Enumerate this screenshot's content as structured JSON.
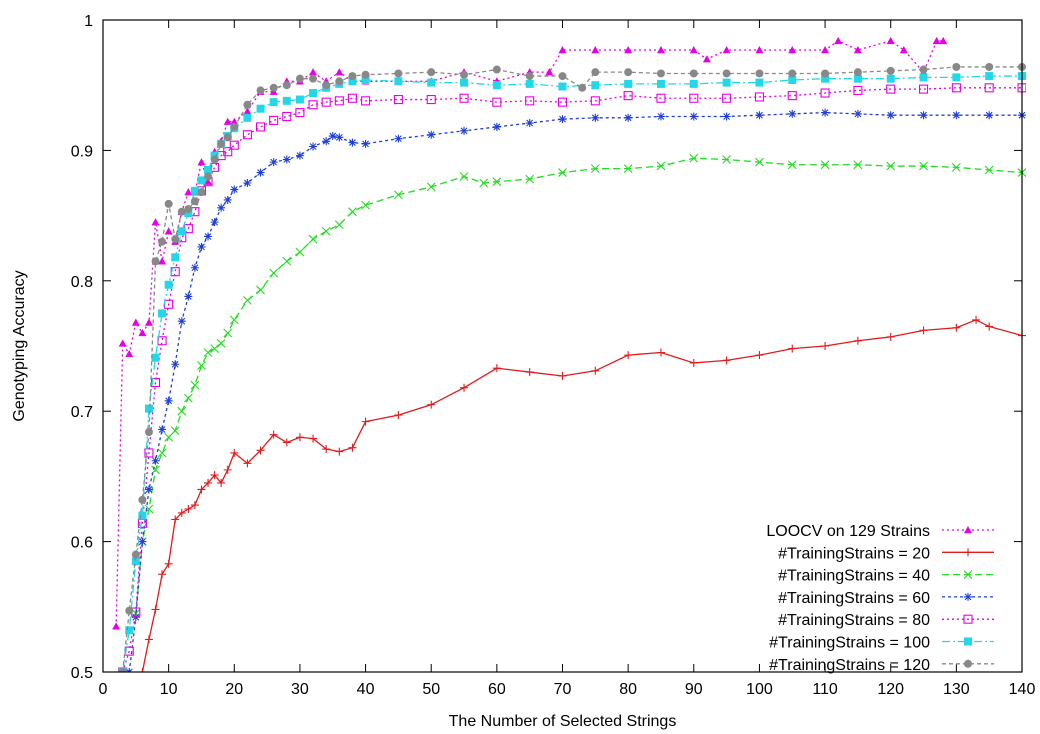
{
  "chart_data": {
    "type": "line",
    "xlabel": "The Number of Selected Strings",
    "ylabel": "Genotyping Accuracy",
    "xlim": [
      0,
      140
    ],
    "ylim": [
      0.5,
      1.0
    ],
    "x_ticks": [
      0,
      10,
      20,
      30,
      40,
      50,
      60,
      70,
      80,
      90,
      100,
      110,
      120,
      130,
      140
    ],
    "y_ticks": [
      0.5,
      0.6,
      0.7,
      0.8,
      0.9,
      1.0
    ],
    "y_tick_labels": [
      "0.5",
      "0.6",
      "0.7",
      "0.8",
      "0.9",
      "1"
    ],
    "grid": false,
    "legend_position": "bottom-right",
    "series": [
      {
        "name": "LOOCV on 129 Strains",
        "color": "#e600e6",
        "dash": "2,3",
        "marker": "triangle",
        "x": [
          2,
          3,
          4,
          5,
          6,
          7,
          8,
          9,
          10,
          11,
          12,
          13,
          14,
          15,
          16,
          17,
          18,
          19,
          20,
          22,
          24,
          26,
          28,
          30,
          32,
          34,
          36,
          38,
          40,
          45,
          50,
          55,
          60,
          65,
          68,
          70,
          75,
          80,
          85,
          90,
          92,
          95,
          100,
          105,
          110,
          112,
          115,
          120,
          122,
          125,
          127,
          128
        ],
        "y": [
          0.535,
          0.752,
          0.744,
          0.768,
          0.76,
          0.768,
          0.845,
          0.815,
          0.838,
          0.83,
          0.853,
          0.868,
          0.868,
          0.891,
          0.876,
          0.899,
          0.907,
          0.922,
          0.922,
          0.93,
          0.945,
          0.945,
          0.953,
          0.953,
          0.96,
          0.953,
          0.96,
          0.953,
          0.953,
          0.953,
          0.953,
          0.96,
          0.953,
          0.96,
          0.96,
          0.977,
          0.977,
          0.977,
          0.977,
          0.977,
          0.97,
          0.977,
          0.977,
          0.977,
          0.977,
          0.984,
          0.977,
          0.984,
          0.977,
          0.96,
          0.984,
          0.984
        ]
      },
      {
        "name": "#TrainingStrains = 20",
        "color": "#e31a1c",
        "dash": "",
        "marker": "plus",
        "x": [
          6,
          7,
          8,
          9,
          10,
          11,
          12,
          13,
          14,
          15,
          16,
          17,
          18,
          19,
          20,
          22,
          24,
          26,
          28,
          30,
          32,
          34,
          36,
          38,
          40,
          45,
          50,
          55,
          60,
          65,
          70,
          75,
          80,
          85,
          90,
          95,
          100,
          105,
          110,
          115,
          120,
          125,
          130,
          133,
          135,
          140
        ],
        "y": [
          0.5,
          0.525,
          0.548,
          0.575,
          0.583,
          0.617,
          0.622,
          0.625,
          0.628,
          0.64,
          0.645,
          0.651,
          0.645,
          0.655,
          0.668,
          0.66,
          0.67,
          0.682,
          0.676,
          0.68,
          0.679,
          0.671,
          0.669,
          0.672,
          0.692,
          0.697,
          0.705,
          0.718,
          0.733,
          0.73,
          0.727,
          0.731,
          0.743,
          0.745,
          0.737,
          0.739,
          0.743,
          0.748,
          0.75,
          0.754,
          0.757,
          0.762,
          0.764,
          0.77,
          0.765,
          0.758
        ]
      },
      {
        "name": "#TrainingStrains = 40",
        "color": "#22dd22",
        "dash": "7,4",
        "marker": "x",
        "x": [
          5,
          6,
          7,
          8,
          9,
          10,
          11,
          12,
          13,
          14,
          15,
          16,
          17,
          18,
          19,
          20,
          22,
          24,
          26,
          28,
          30,
          32,
          34,
          36,
          38,
          40,
          45,
          50,
          55,
          58,
          60,
          65,
          70,
          75,
          80,
          85,
          90,
          95,
          100,
          105,
          110,
          115,
          120,
          125,
          130,
          135,
          140
        ],
        "y": [
          0.545,
          0.6,
          0.625,
          0.655,
          0.668,
          0.68,
          0.685,
          0.7,
          0.71,
          0.72,
          0.735,
          0.745,
          0.748,
          0.752,
          0.76,
          0.77,
          0.785,
          0.793,
          0.806,
          0.815,
          0.822,
          0.832,
          0.838,
          0.843,
          0.853,
          0.858,
          0.866,
          0.872,
          0.88,
          0.875,
          0.876,
          0.878,
          0.883,
          0.886,
          0.886,
          0.888,
          0.894,
          0.893,
          0.891,
          0.889,
          0.889,
          0.889,
          0.888,
          0.888,
          0.887,
          0.885,
          0.883
        ]
      },
      {
        "name": "#TrainingStrains = 60",
        "color": "#1f3fd8",
        "dash": "3,3",
        "marker": "star",
        "x": [
          4,
          5,
          6,
          7,
          8,
          9,
          10,
          11,
          12,
          13,
          14,
          15,
          16,
          17,
          18,
          19,
          20,
          22,
          24,
          26,
          28,
          30,
          32,
          34,
          35,
          36,
          38,
          40,
          45,
          50,
          55,
          60,
          65,
          70,
          75,
          80,
          85,
          90,
          95,
          100,
          105,
          110,
          115,
          120,
          125,
          130,
          135,
          140
        ],
        "y": [
          0.5,
          0.542,
          0.6,
          0.64,
          0.662,
          0.686,
          0.708,
          0.736,
          0.769,
          0.788,
          0.81,
          0.826,
          0.834,
          0.845,
          0.856,
          0.862,
          0.87,
          0.875,
          0.883,
          0.891,
          0.893,
          0.896,
          0.903,
          0.907,
          0.911,
          0.91,
          0.906,
          0.905,
          0.909,
          0.912,
          0.915,
          0.918,
          0.921,
          0.924,
          0.925,
          0.925,
          0.926,
          0.926,
          0.926,
          0.927,
          0.928,
          0.929,
          0.928,
          0.927,
          0.927,
          0.927,
          0.927,
          0.927
        ]
      },
      {
        "name": "#TrainingStrains = 80",
        "color": "#e600e6",
        "dash": "2,3",
        "marker": "square-open",
        "x": [
          3,
          4,
          5,
          6,
          7,
          8,
          9,
          10,
          11,
          12,
          13,
          14,
          15,
          16,
          17,
          18,
          19,
          20,
          22,
          24,
          26,
          28,
          30,
          32,
          34,
          36,
          38,
          40,
          45,
          50,
          55,
          60,
          65,
          70,
          75,
          80,
          85,
          90,
          95,
          100,
          105,
          110,
          115,
          120,
          125,
          130,
          135,
          140
        ],
        "y": [
          0.5,
          0.516,
          0.546,
          0.614,
          0.668,
          0.722,
          0.754,
          0.782,
          0.807,
          0.833,
          0.84,
          0.853,
          0.869,
          0.876,
          0.887,
          0.896,
          0.899,
          0.904,
          0.912,
          0.918,
          0.923,
          0.926,
          0.929,
          0.935,
          0.937,
          0.938,
          0.94,
          0.938,
          0.939,
          0.939,
          0.94,
          0.937,
          0.938,
          0.937,
          0.938,
          0.942,
          0.94,
          0.94,
          0.94,
          0.941,
          0.942,
          0.944,
          0.946,
          0.947,
          0.947,
          0.948,
          0.948,
          0.948
        ]
      },
      {
        "name": "#TrainingStrains = 100",
        "color": "#22d8e8",
        "dash": "8,3,2,3",
        "marker": "square-filled",
        "x": [
          3,
          4,
          5,
          6,
          7,
          8,
          9,
          10,
          11,
          12,
          13,
          14,
          15,
          16,
          17,
          18,
          19,
          20,
          22,
          24,
          26,
          28,
          30,
          32,
          34,
          36,
          38,
          40,
          45,
          50,
          55,
          60,
          65,
          70,
          75,
          80,
          85,
          90,
          95,
          100,
          105,
          110,
          115,
          120,
          125,
          130,
          135,
          140
        ],
        "y": [
          0.5,
          0.532,
          0.585,
          0.62,
          0.702,
          0.741,
          0.775,
          0.797,
          0.818,
          0.838,
          0.852,
          0.869,
          0.877,
          0.885,
          0.896,
          0.905,
          0.911,
          0.917,
          0.925,
          0.932,
          0.937,
          0.938,
          0.939,
          0.944,
          0.948,
          0.951,
          0.953,
          0.954,
          0.953,
          0.952,
          0.952,
          0.95,
          0.951,
          0.949,
          0.95,
          0.951,
          0.951,
          0.951,
          0.952,
          0.952,
          0.954,
          0.955,
          0.955,
          0.955,
          0.956,
          0.956,
          0.957,
          0.957
        ]
      },
      {
        "name": "#TrainingStrains = 120",
        "color": "#888888",
        "dash": "4,3",
        "marker": "circle",
        "x": [
          3,
          4,
          5,
          6,
          7,
          8,
          9,
          10,
          11,
          12,
          13,
          14,
          15,
          16,
          17,
          18,
          19,
          20,
          22,
          24,
          26,
          28,
          30,
          32,
          34,
          36,
          38,
          40,
          45,
          50,
          55,
          60,
          65,
          70,
          73,
          75,
          80,
          85,
          90,
          95,
          100,
          105,
          110,
          115,
          120,
          125,
          130,
          135,
          140
        ],
        "y": [
          0.5,
          0.547,
          0.59,
          0.632,
          0.684,
          0.815,
          0.83,
          0.859,
          0.832,
          0.853,
          0.855,
          0.861,
          0.868,
          0.88,
          0.893,
          0.905,
          0.91,
          0.918,
          0.935,
          0.946,
          0.948,
          0.95,
          0.955,
          0.955,
          0.95,
          0.953,
          0.957,
          0.958,
          0.959,
          0.96,
          0.958,
          0.962,
          0.957,
          0.957,
          0.948,
          0.96,
          0.96,
          0.959,
          0.959,
          0.959,
          0.959,
          0.959,
          0.959,
          0.96,
          0.961,
          0.962,
          0.964,
          0.964,
          0.964
        ]
      }
    ]
  }
}
